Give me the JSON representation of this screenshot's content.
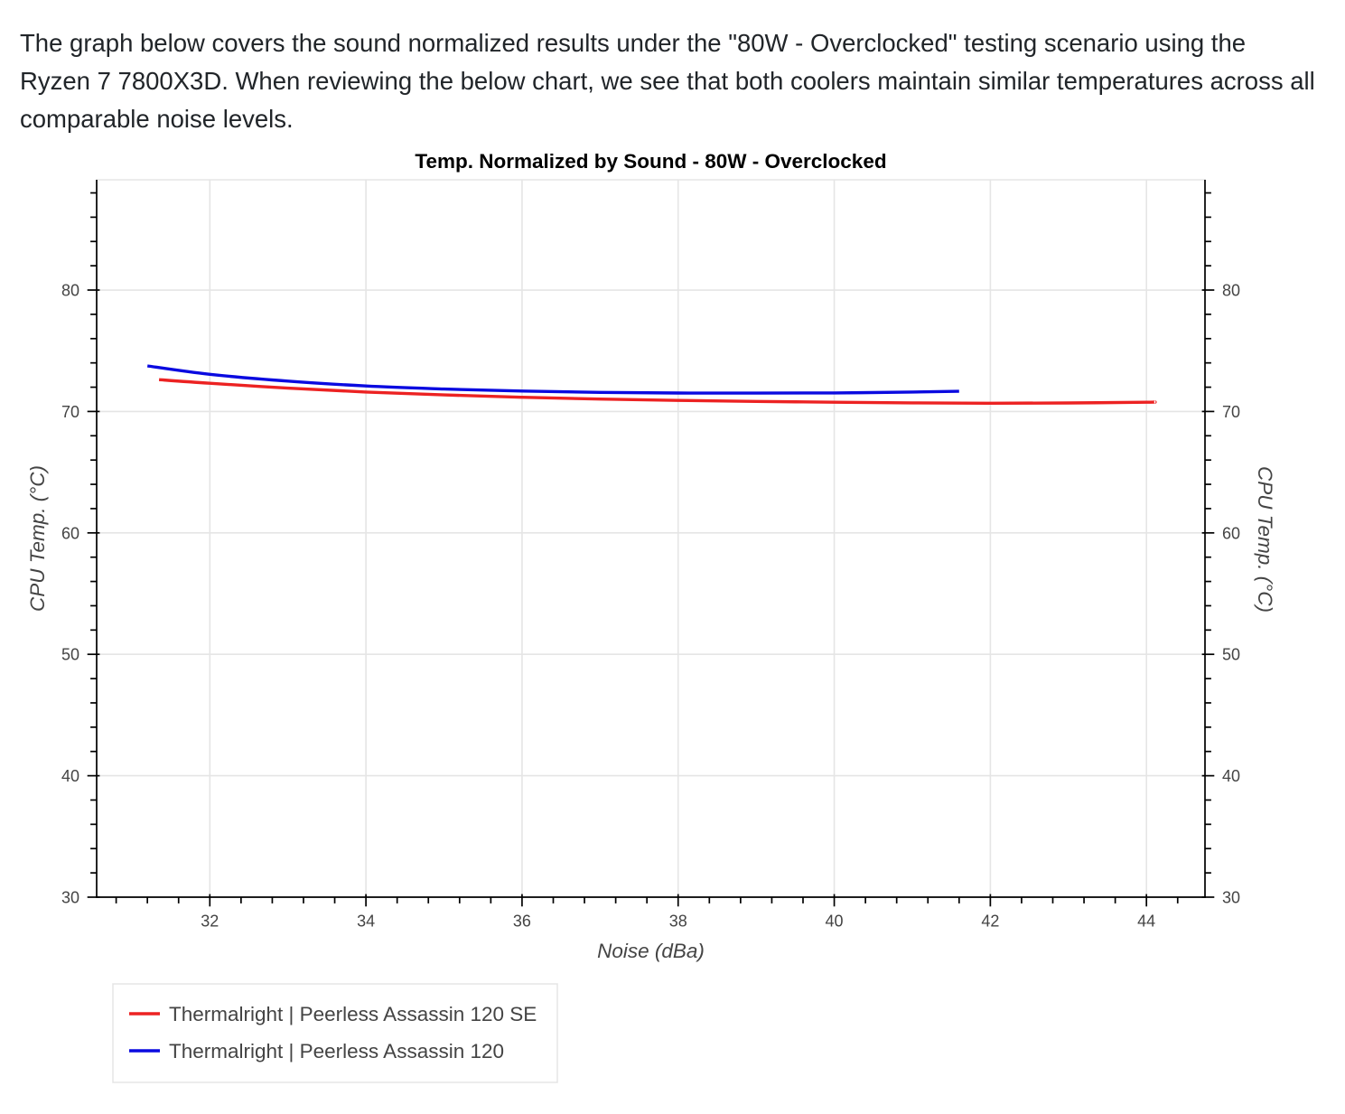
{
  "intro": {
    "lines": [
      "The graph below covers the sound normalized results under the \"80W - Overclocked\" testing scenario using the",
      "Ryzen 7 7800X3D. When reviewing the below chart, we see that both coolers maintain similar temperatures across all",
      "comparable noise levels."
    ]
  },
  "chart_data": {
    "type": "line",
    "title": "Temp. Normalized by Sound - 80W - Overclocked",
    "xlabel": "Noise (dBa)",
    "ylabel": "CPU Temp. (°C)",
    "y2label": "CPU Temp. (°C)",
    "xlim": [
      30.55,
      44.75
    ],
    "ylim": [
      30,
      89.08
    ],
    "xticks": [
      32,
      34,
      36,
      38,
      40,
      42,
      44
    ],
    "yticks": [
      30,
      40,
      50,
      60,
      70,
      80
    ],
    "grid": true,
    "legend_placement": "bottom-left",
    "series": [
      {
        "name": "Thermalright | Peerless Assassin 120 SE",
        "color": "#ec2222",
        "x": [
          31.35,
          32,
          33,
          34,
          35,
          36,
          37,
          38,
          39,
          40,
          41,
          42,
          43,
          44,
          44.1
        ],
        "y": [
          72.62,
          72.32,
          71.92,
          71.6,
          71.36,
          71.17,
          71.02,
          70.91,
          70.83,
          70.76,
          70.71,
          70.68,
          70.7,
          70.76,
          70.78
        ]
      },
      {
        "name": "Thermalright | Peerless Assassin 120",
        "color": "#0a0ae0",
        "x": [
          31.2,
          32,
          33,
          34,
          35,
          36,
          37,
          38,
          39,
          40,
          41,
          41.6
        ],
        "y": [
          73.75,
          73.06,
          72.5,
          72.1,
          71.85,
          71.68,
          71.57,
          71.52,
          71.51,
          71.53,
          71.6,
          71.66
        ]
      }
    ]
  }
}
